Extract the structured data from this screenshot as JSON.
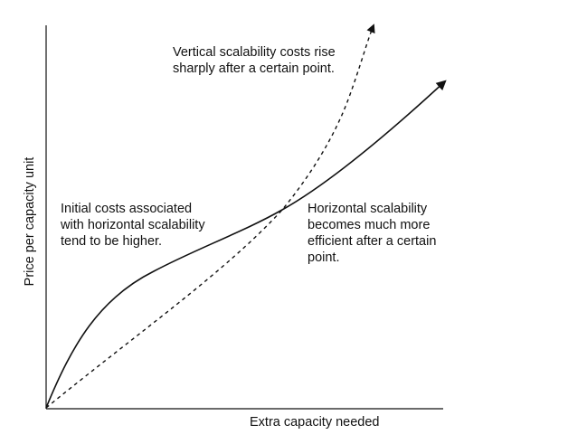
{
  "diagram": {
    "axes": {
      "x_label": "Extra capacity needed",
      "y_label": "Price per capacity unit"
    },
    "curves": [
      {
        "name": "horizontal-scalability-curve",
        "style": "solid"
      },
      {
        "name": "vertical-scalability-curve",
        "style": "dashed"
      }
    ],
    "annotations": {
      "vertical": [
        "Vertical scalability costs rise",
        "sharply after a certain point."
      ],
      "initial": [
        "Initial costs associated",
        "with horizontal scalability",
        "tend to be higher."
      ],
      "horizontal": [
        "Horizontal scalability",
        "becomes much more",
        "efficient after a certain",
        "point."
      ]
    }
  }
}
